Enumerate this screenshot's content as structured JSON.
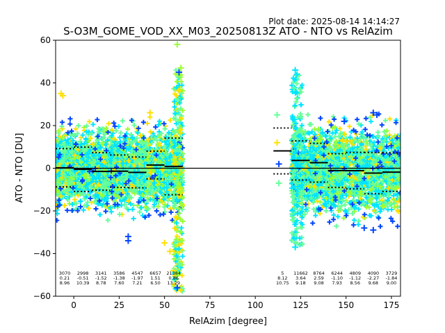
{
  "plot_date": "Plot date: 2025-08-14 14:14:27",
  "chart_data": {
    "type": "scatter",
    "title": "S-O3M_GOME_VOD_XX_M03_20250813Z ATO - NTO vs RelAzim",
    "xlabel": "RelAzim [degree]",
    "ylabel": "ATO - NTO [DU]",
    "xlim": [
      -10,
      180
    ],
    "ylim": [
      -60,
      60
    ],
    "xticks": [
      0,
      25,
      50,
      75,
      100,
      125,
      150,
      175
    ],
    "yticks": [
      -60,
      -40,
      -20,
      0,
      20,
      40,
      60
    ],
    "grid": false,
    "colors": {
      "cyan": "#00e5ff",
      "green": "#66ff99",
      "yellow": "#ffe000",
      "blue": "#0044ff",
      "lime": "#99ff33"
    },
    "scatter_ranges": [
      {
        "x": [
          -10,
          60
        ],
        "y_low": -25,
        "y_high": 25
      },
      {
        "x": [
          120,
          180
        ],
        "y_low": -28,
        "y_high": 26
      }
    ],
    "bins": [
      {
        "x": [
          -10,
          0
        ],
        "count": "3070",
        "mean": "0.21",
        "std": "8.96"
      },
      {
        "x": [
          0,
          10
        ],
        "count": "2998",
        "mean": "-0.51",
        "std": "10.39"
      },
      {
        "x": [
          10,
          20
        ],
        "count": "3141",
        "mean": "-1.52",
        "std": "8.78"
      },
      {
        "x": [
          20,
          30
        ],
        "count": "3586",
        "mean": "-1.38",
        "std": "7.60"
      },
      {
        "x": [
          30,
          40
        ],
        "count": "4547",
        "mean": "-1.97",
        "std": "7.21"
      },
      {
        "x": [
          40,
          50
        ],
        "count": "6657",
        "mean": "1.51",
        "std": "6.50"
      },
      {
        "x": [
          50,
          60
        ],
        "count": "21384",
        "mean": "0.86",
        "std": "13.29"
      },
      {
        "x": [
          110,
          120
        ],
        "count": "5",
        "mean": "8.12",
        "std": "10.75"
      },
      {
        "x": [
          120,
          130
        ],
        "count": "11662",
        "mean": "3.64",
        "std": "9.18"
      },
      {
        "x": [
          130,
          140
        ],
        "count": "8764",
        "mean": "2.59",
        "std": "9.08"
      },
      {
        "x": [
          140,
          150
        ],
        "count": "6244",
        "mean": "-1.10",
        "std": "7.93"
      },
      {
        "x": [
          150,
          160
        ],
        "count": "4809",
        "mean": "-1.12",
        "std": "8.56"
      },
      {
        "x": [
          160,
          170
        ],
        "count": "4090",
        "mean": "-2.27",
        "std": "9.68"
      },
      {
        "x": [
          170,
          180
        ],
        "count": "3729",
        "mean": "-1.84",
        "std": "9.00"
      }
    ],
    "outliers": [
      {
        "x": -7,
        "y": 35,
        "c": "yellow"
      },
      {
        "x": -6,
        "y": 34,
        "c": "yellow"
      },
      {
        "x": 57,
        "y": 58,
        "c": "lime"
      },
      {
        "x": 58,
        "y": 45,
        "c": "blue"
      },
      {
        "x": 59,
        "y": 47,
        "c": "lime"
      },
      {
        "x": 57,
        "y": -56,
        "c": "blue"
      },
      {
        "x": 56,
        "y": -52,
        "c": "cyan"
      },
      {
        "x": 55,
        "y": -48,
        "c": "yellow"
      },
      {
        "x": 53,
        "y": -39,
        "c": "yellow"
      },
      {
        "x": 50,
        "y": -35,
        "c": "yellow"
      },
      {
        "x": 30,
        "y": -32,
        "c": "blue"
      },
      {
        "x": 30,
        "y": -34,
        "c": "blue"
      },
      {
        "x": 42,
        "y": 26,
        "c": "yellow"
      },
      {
        "x": 112,
        "y": 25,
        "c": "green"
      },
      {
        "x": 112,
        "y": 12,
        "c": "yellow"
      },
      {
        "x": 113,
        "y": 2,
        "c": "blue"
      },
      {
        "x": 113,
        "y": -7,
        "c": "green"
      },
      {
        "x": 122,
        "y": 46,
        "c": "cyan"
      },
      {
        "x": 123,
        "y": 44,
        "c": "cyan"
      },
      {
        "x": 122,
        "y": -37,
        "c": "cyan"
      },
      {
        "x": 149,
        "y": 22,
        "c": "blue"
      },
      {
        "x": 165,
        "y": 26,
        "c": "blue"
      },
      {
        "x": 167,
        "y": 25,
        "c": "blue"
      },
      {
        "x": 160,
        "y": -28,
        "c": "blue"
      },
      {
        "x": 165,
        "y": -29,
        "c": "blue"
      }
    ]
  }
}
